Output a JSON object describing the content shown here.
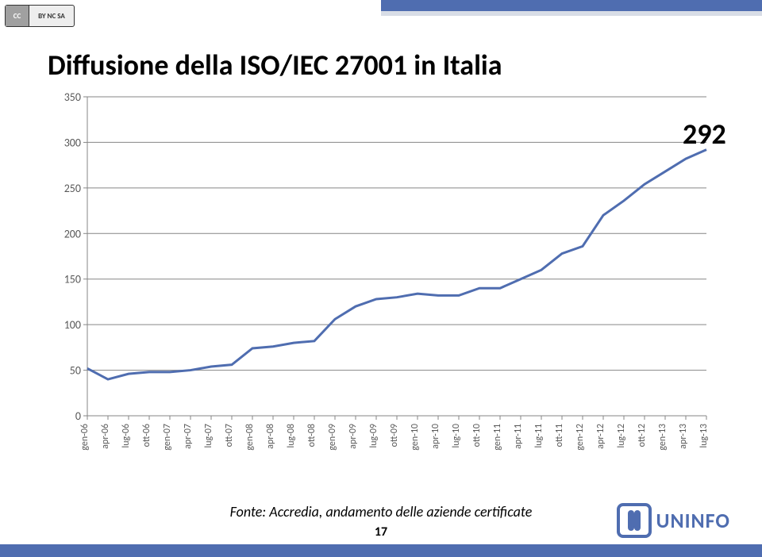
{
  "title": "Diffusione della ISO/IEC 27001 in Italia",
  "callout_value": "292",
  "footnote": "Fonte: Accredia, andamento delle aziende certificate",
  "page_number": "17",
  "logo_text": "UNINFO",
  "chart": {
    "type": "line",
    "background_color": "#ffffff",
    "ylim": [
      0,
      350
    ],
    "ytick_step": 50,
    "ytick_labels": [
      "0",
      "50",
      "100",
      "150",
      "200",
      "250",
      "300",
      "350"
    ],
    "ytick_fontsize": 14,
    "xtick_fontsize": 12,
    "xtick_rotation": -90,
    "grid_color": "#868686",
    "axis_color": "#868686",
    "line_color": "#4f6db0",
    "line_width": 3,
    "categories": [
      "gen-06",
      "apr-06",
      "lug-06",
      "ott-06",
      "gen-07",
      "apr-07",
      "lug-07",
      "ott-07",
      "gen-08",
      "apr-08",
      "lug-08",
      "ott-08",
      "gen-09",
      "apr-09",
      "lug-09",
      "ott-09",
      "gen-10",
      "apr-10",
      "lug-10",
      "ott-10",
      "gen-11",
      "apr-11",
      "lug-11",
      "ott-11",
      "gen-12",
      "apr-12",
      "lug-12",
      "ott-12",
      "gen-13",
      "apr-13",
      "lug-13"
    ],
    "values": [
      52,
      40,
      46,
      48,
      48,
      50,
      54,
      56,
      74,
      76,
      80,
      82,
      106,
      120,
      128,
      130,
      134,
      132,
      132,
      140,
      140,
      150,
      160,
      178,
      186,
      220,
      236,
      254,
      268,
      282,
      292
    ]
  },
  "colors": {
    "accent": "#4f6db0",
    "text": "#000000"
  }
}
